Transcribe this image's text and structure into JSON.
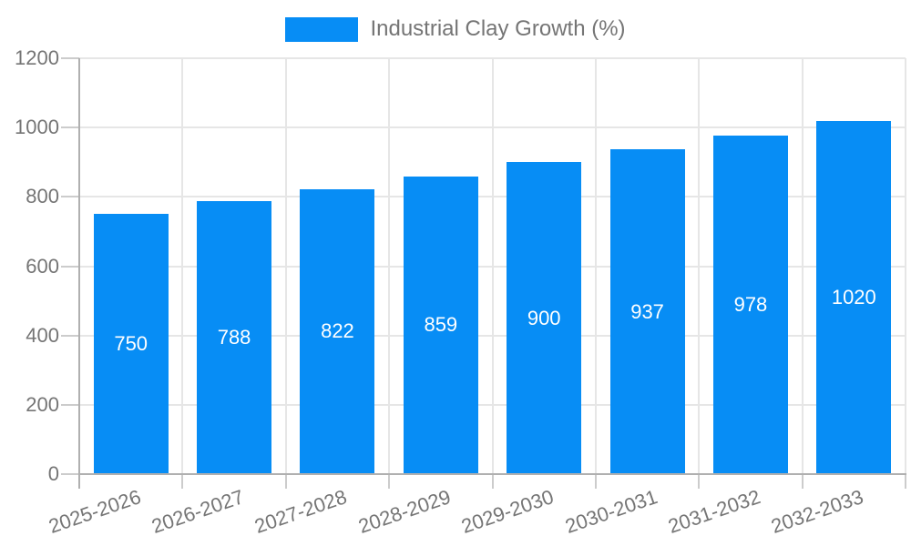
{
  "legend": {
    "label": "Industrial Clay Growth (%)"
  },
  "colors": {
    "bar": "#078df5",
    "grid": "#e6e6e6",
    "axis_line": "#b0b0b0",
    "tick": "#cccccc",
    "label_text": "#757575",
    "value_label": "#ffffff",
    "background": "#ffffff"
  },
  "chart_data": {
    "type": "bar",
    "title": "",
    "legend_entries": [
      "Industrial Clay Growth (%)"
    ],
    "legend_position": "top-center",
    "categories": [
      "2025-2026",
      "2026-2027",
      "2027-2028",
      "2028-2029",
      "2029-2030",
      "2030-2031",
      "2031-2032",
      "2032-2033"
    ],
    "values": [
      750,
      788,
      822,
      859,
      900,
      937,
      978,
      1020
    ],
    "value_labels": [
      "750",
      "788",
      "822",
      "859",
      "900",
      "937",
      "978",
      "1020"
    ],
    "value_labels_position": "inside-center",
    "xlabel": "",
    "ylabel": "",
    "ylim": [
      0,
      1200
    ],
    "yticks": [
      0,
      200,
      400,
      600,
      800,
      1000,
      1200
    ],
    "grid": true
  }
}
